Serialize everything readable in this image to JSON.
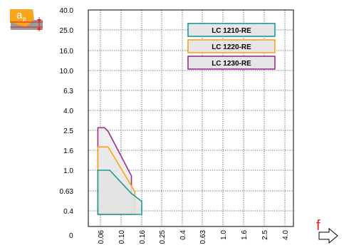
{
  "chart_data": {
    "type": "area",
    "title": "",
    "xlabel": "f",
    "ylabel": "ap",
    "x_ticks": [
      "0.06",
      "0.10",
      "0.16",
      "0.25",
      "0.4",
      "0.63",
      "1.0",
      "1.6",
      "2.5",
      "4.0"
    ],
    "y_ticks": [
      "40.0",
      "25.0",
      "16.0",
      "10.0",
      "6.3",
      "4.0",
      "2.5",
      "1.6",
      "1.0",
      "0.63",
      "0.4",
      "0"
    ],
    "origin_label": "0",
    "grid": true,
    "legend_position": "top-right",
    "series": [
      {
        "name": "LC 1230-RE",
        "color": "#9b2d8f",
        "fill": "#ececec",
        "points": [
          [
            0.055,
            0.3
          ],
          [
            0.055,
            2.7
          ],
          [
            0.068,
            2.7
          ],
          [
            0.075,
            2.45
          ],
          [
            0.13,
            0.9
          ],
          [
            0.13,
            0.3
          ]
        ]
      },
      {
        "name": "LC 1220-RE",
        "color": "#f7a51b",
        "fill": "#e8e8e8",
        "points": [
          [
            0.055,
            0.3
          ],
          [
            0.055,
            1.75
          ],
          [
            0.075,
            1.75
          ],
          [
            0.13,
            0.72
          ],
          [
            0.14,
            0.62
          ],
          [
            0.14,
            0.3
          ]
        ]
      },
      {
        "name": "LC 1210-RE",
        "color": "#199a95",
        "fill": "#e2e2e2",
        "points": [
          [
            0.055,
            0.3
          ],
          [
            0.055,
            1.0
          ],
          [
            0.078,
            1.0
          ],
          [
            0.13,
            0.6
          ],
          [
            0.16,
            0.51
          ],
          [
            0.16,
            0.3
          ]
        ]
      }
    ],
    "legend": [
      {
        "name": "LC 1210-RE",
        "color": "#199a95"
      },
      {
        "name": "LC 1220-RE",
        "color": "#f7a51b"
      },
      {
        "name": "LC 1230-RE",
        "color": "#9b2d8f"
      }
    ]
  }
}
